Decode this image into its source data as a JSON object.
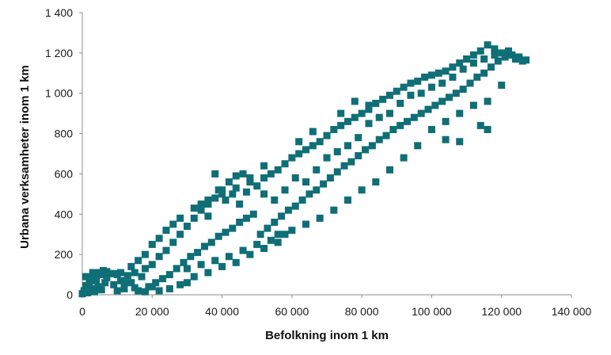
{
  "chart_data": {
    "type": "scatter",
    "title": "",
    "xlabel": "Befolkning inom 1 km",
    "ylabel": "Urbana verksamheter inom 1 km",
    "xlim": [
      0,
      140000
    ],
    "ylim": [
      0,
      1400
    ],
    "x_ticks": [
      0,
      20000,
      40000,
      60000,
      80000,
      100000,
      120000,
      140000
    ],
    "x_tick_labels": [
      "0",
      "20 000",
      "40 000",
      "60 000",
      "80 000",
      "100 000",
      "120 000",
      "140 000"
    ],
    "y_ticks": [
      0,
      200,
      400,
      600,
      800,
      1000,
      1200,
      1400
    ],
    "y_tick_labels": [
      "0",
      "200",
      "400",
      "600",
      "800",
      "1 000",
      "1 200",
      "1 400"
    ],
    "grid": false,
    "legend": "none",
    "marker": "square",
    "color": "#0f6e76",
    "series": [
      {
        "points": [
          [
            0,
            5
          ],
          [
            500,
            20
          ],
          [
            1000,
            45
          ],
          [
            1500,
            10
          ],
          [
            2000,
            60
          ],
          [
            2500,
            30
          ],
          [
            3000,
            80
          ],
          [
            3500,
            15
          ],
          [
            4000,
            95
          ],
          [
            4500,
            40
          ],
          [
            5000,
            110
          ],
          [
            5500,
            25
          ],
          [
            6000,
            100
          ],
          [
            6500,
            60
          ],
          [
            7000,
            85
          ],
          [
            8000,
            105
          ],
          [
            9000,
            50
          ],
          [
            10000,
            100
          ],
          [
            11000,
            70
          ],
          [
            12000,
            30
          ],
          [
            13000,
            95
          ],
          [
            14000,
            60
          ],
          [
            15000,
            110
          ],
          [
            16000,
            20
          ],
          [
            17000,
            90
          ],
          [
            18000,
            130
          ],
          [
            19000,
            40
          ],
          [
            20000,
            150
          ],
          [
            21000,
            60
          ],
          [
            22000,
            190
          ],
          [
            23000,
            80
          ],
          [
            24000,
            220
          ],
          [
            25000,
            100
          ],
          [
            26000,
            260
          ],
          [
            27000,
            130
          ],
          [
            28000,
            300
          ],
          [
            29000,
            160
          ],
          [
            30000,
            340
          ],
          [
            31000,
            190
          ],
          [
            32000,
            380
          ],
          [
            33000,
            210
          ],
          [
            34000,
            420
          ],
          [
            35000,
            240
          ],
          [
            36000,
            450
          ],
          [
            37000,
            260
          ],
          [
            38000,
            480
          ],
          [
            39000,
            290
          ],
          [
            40000,
            520
          ],
          [
            41000,
            310
          ],
          [
            42000,
            560
          ],
          [
            43000,
            330
          ],
          [
            44000,
            590
          ],
          [
            45000,
            360
          ],
          [
            46000,
            600
          ],
          [
            47000,
            380
          ],
          [
            48000,
            560
          ],
          [
            49000,
            400
          ],
          [
            50000,
            540
          ],
          [
            51000,
            300
          ],
          [
            52000,
            580
          ],
          [
            53000,
            330
          ],
          [
            54000,
            600
          ],
          [
            55000,
            360
          ],
          [
            56000,
            620
          ],
          [
            57000,
            390
          ],
          [
            58000,
            650
          ],
          [
            59000,
            420
          ],
          [
            60000,
            680
          ],
          [
            61000,
            440
          ],
          [
            62000,
            700
          ],
          [
            63000,
            470
          ],
          [
            64000,
            720
          ],
          [
            65000,
            500
          ],
          [
            66000,
            740
          ],
          [
            67000,
            520
          ],
          [
            68000,
            760
          ],
          [
            69000,
            550
          ],
          [
            70000,
            790
          ],
          [
            71000,
            580
          ],
          [
            72000,
            820
          ],
          [
            73000,
            610
          ],
          [
            74000,
            840
          ],
          [
            75000,
            640
          ],
          [
            76000,
            860
          ],
          [
            77000,
            660
          ],
          [
            78000,
            880
          ],
          [
            79000,
            690
          ],
          [
            80000,
            900
          ],
          [
            81000,
            720
          ],
          [
            82000,
            920
          ],
          [
            83000,
            740
          ],
          [
            84000,
            950
          ],
          [
            85000,
            770
          ],
          [
            86000,
            970
          ],
          [
            87000,
            790
          ],
          [
            88000,
            990
          ],
          [
            89000,
            820
          ],
          [
            90000,
            1010
          ],
          [
            91000,
            840
          ],
          [
            92000,
            1030
          ],
          [
            93000,
            860
          ],
          [
            94000,
            1050
          ],
          [
            95000,
            880
          ],
          [
            96000,
            1060
          ],
          [
            97000,
            900
          ],
          [
            98000,
            1080
          ],
          [
            99000,
            920
          ],
          [
            100000,
            1090
          ],
          [
            101000,
            940
          ],
          [
            102000,
            1100
          ],
          [
            103000,
            960
          ],
          [
            104000,
            1110
          ],
          [
            105000,
            980
          ],
          [
            106000,
            1130
          ],
          [
            107000,
            1000
          ],
          [
            108000,
            1150
          ],
          [
            109000,
            1020
          ],
          [
            110000,
            1170
          ],
          [
            111000,
            1050
          ],
          [
            112000,
            1190
          ],
          [
            113000,
            1080
          ],
          [
            114000,
            1210
          ],
          [
            115000,
            1100
          ],
          [
            116000,
            1240
          ],
          [
            117000,
            1130
          ],
          [
            118000,
            1220
          ],
          [
            119000,
            1160
          ],
          [
            120000,
            1200
          ],
          [
            121000,
            1180
          ],
          [
            122000,
            1210
          ],
          [
            123000,
            1190
          ],
          [
            124000,
            1170
          ],
          [
            125000,
            1180
          ],
          [
            126000,
            1160
          ],
          [
            127000,
            1165
          ],
          [
            34000,
            450
          ],
          [
            36000,
            390
          ],
          [
            38000,
            600
          ],
          [
            39000,
            520
          ],
          [
            41000,
            470
          ],
          [
            43000,
            500
          ],
          [
            45000,
            450
          ],
          [
            47000,
            510
          ],
          [
            52000,
            500
          ],
          [
            55000,
            470
          ],
          [
            58000,
            520
          ],
          [
            61000,
            580
          ],
          [
            64000,
            560
          ],
          [
            67000,
            620
          ],
          [
            70000,
            680
          ],
          [
            73000,
            710
          ],
          [
            76000,
            740
          ],
          [
            79000,
            780
          ],
          [
            82000,
            850
          ],
          [
            85000,
            880
          ],
          [
            88000,
            900
          ],
          [
            91000,
            950
          ],
          [
            94000,
            990
          ],
          [
            97000,
            1000
          ],
          [
            100000,
            1030
          ],
          [
            103000,
            1050
          ],
          [
            106000,
            1080
          ],
          [
            109000,
            1120
          ],
          [
            112000,
            1150
          ],
          [
            115000,
            1170
          ],
          [
            118000,
            1190
          ],
          [
            56000,
            300
          ],
          [
            60000,
            320
          ],
          [
            64000,
            350
          ],
          [
            68000,
            380
          ],
          [
            72000,
            420
          ],
          [
            76000,
            470
          ],
          [
            80000,
            520
          ],
          [
            84000,
            560
          ],
          [
            88000,
            620
          ],
          [
            92000,
            680
          ],
          [
            96000,
            740
          ],
          [
            100000,
            820
          ],
          [
            104000,
            860
          ],
          [
            108000,
            900
          ],
          [
            112000,
            940
          ],
          [
            116000,
            960
          ],
          [
            120000,
            1040
          ],
          [
            104000,
            770
          ],
          [
            108000,
            760
          ],
          [
            114000,
            840
          ],
          [
            116000,
            820
          ],
          [
            82000,
            940
          ],
          [
            78000,
            960
          ],
          [
            74000,
            900
          ],
          [
            66000,
            810
          ],
          [
            62000,
            760
          ],
          [
            52000,
            640
          ],
          [
            48000,
            580
          ],
          [
            44000,
            530
          ],
          [
            40000,
            500
          ],
          [
            36000,
            470
          ],
          [
            32000,
            430
          ],
          [
            28000,
            380
          ],
          [
            26000,
            350
          ],
          [
            24000,
            320
          ],
          [
            22000,
            280
          ],
          [
            20000,
            250
          ],
          [
            18000,
            200
          ],
          [
            16000,
            170
          ],
          [
            14000,
            140
          ],
          [
            30000,
            130
          ],
          [
            34000,
            150
          ],
          [
            38000,
            170
          ],
          [
            42000,
            190
          ],
          [
            46000,
            220
          ],
          [
            50000,
            250
          ],
          [
            54000,
            270
          ],
          [
            58000,
            300
          ],
          [
            30000,
            60
          ],
          [
            32000,
            90
          ],
          [
            36000,
            110
          ],
          [
            40000,
            140
          ],
          [
            44000,
            160
          ],
          [
            48000,
            200
          ],
          [
            52000,
            230
          ],
          [
            56000,
            260
          ],
          [
            25000,
            30
          ],
          [
            28000,
            50
          ],
          [
            22000,
            20
          ],
          [
            20000,
            40
          ],
          [
            18000,
            15
          ],
          [
            15000,
            35
          ],
          [
            12000,
            60
          ],
          [
            10000,
            20
          ],
          [
            6000,
            120
          ],
          [
            4000,
            70
          ],
          [
            2000,
            40
          ],
          [
            1000,
            90
          ],
          [
            3000,
            110
          ],
          [
            7000,
            115
          ],
          [
            9000,
            105
          ],
          [
            11000,
            110
          ]
        ]
      }
    ]
  }
}
